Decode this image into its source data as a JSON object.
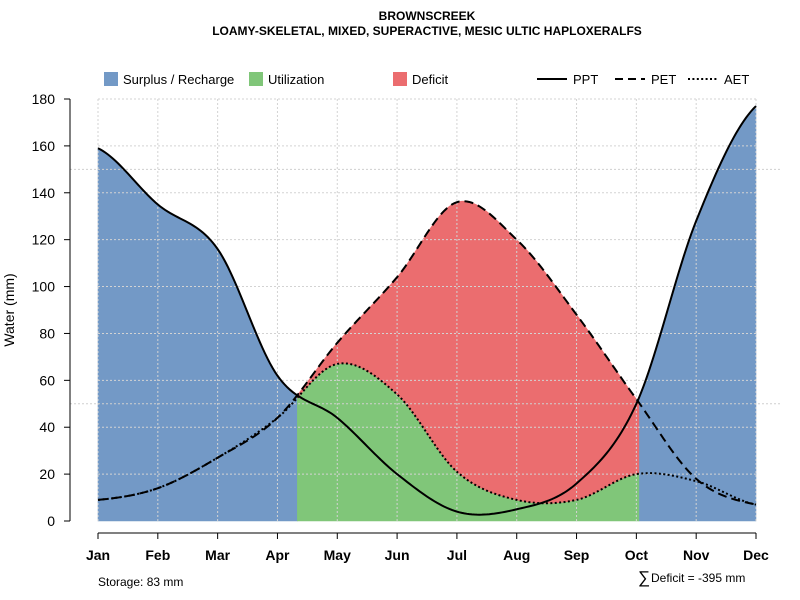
{
  "chart_data": {
    "type": "area",
    "title": "BROWNSCREEK",
    "subtitle": "LOAMY-SKELETAL, MIXED, SUPERACTIVE, MESIC ULTIC HAPLOXERALFS",
    "xlabel": "",
    "ylabel": "Water (mm)",
    "ylim": [
      0,
      180
    ],
    "yticks": [
      0,
      20,
      40,
      60,
      80,
      100,
      120,
      140,
      160,
      180
    ],
    "categories": [
      "Jan",
      "Feb",
      "Mar",
      "Apr",
      "May",
      "Jun",
      "Jul",
      "Aug",
      "Sep",
      "Oct",
      "Nov",
      "Dec"
    ],
    "series": [
      {
        "name": "PPT",
        "style": "solid",
        "values": [
          159,
          135,
          116,
          62,
          44,
          20,
          4,
          5,
          16,
          50,
          128,
          177
        ]
      },
      {
        "name": "PET",
        "style": "dashed",
        "values": [
          9,
          14,
          27,
          44,
          76,
          104,
          136,
          120,
          88,
          52,
          18,
          7
        ]
      },
      {
        "name": "AET",
        "style": "dotted",
        "values": [
          9,
          14,
          27,
          44,
          67,
          54,
          21,
          9,
          9,
          20,
          17,
          7
        ]
      }
    ],
    "areas": [
      {
        "name": "Surplus / Recharge",
        "color": "#7399C6"
      },
      {
        "name": "Utilization",
        "color": "#80C679"
      },
      {
        "name": "Deficit",
        "color": "#EB6D6F"
      }
    ],
    "legend_position": "top",
    "grid": true,
    "storage_note": "Storage: 83 mm",
    "deficit_symbol": "∑",
    "deficit_note": "Deficit = -395 mm"
  }
}
